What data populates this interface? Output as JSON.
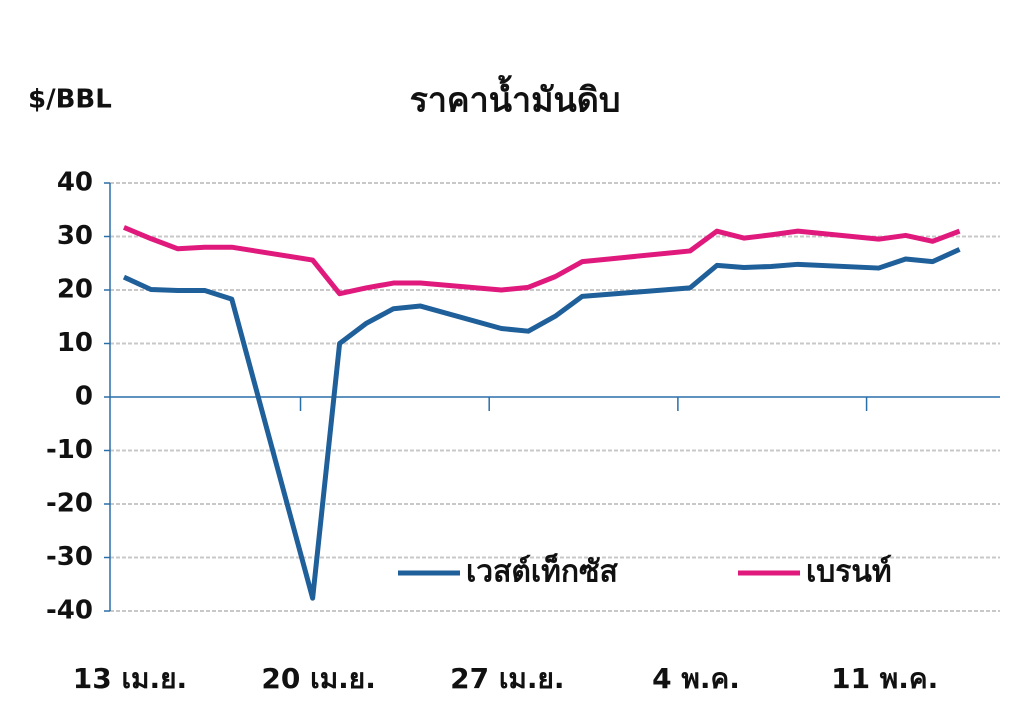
{
  "chart_data": {
    "type": "line",
    "title": "ราคาน้ำมันดิบ",
    "y_label": "$/BBL",
    "x": [
      0,
      1,
      2,
      3,
      4,
      7,
      8,
      9,
      10,
      11,
      14,
      15,
      16,
      17,
      18,
      21,
      22,
      23,
      24,
      25,
      28,
      29,
      30,
      31
    ],
    "series": [
      {
        "name": "เวสต์เท็กซัส",
        "color": "#1f5f9a",
        "values": [
          22.4,
          20.1,
          19.9,
          19.9,
          18.3,
          -37.6,
          10.0,
          13.8,
          16.5,
          17.0,
          12.8,
          12.3,
          15.1,
          18.8,
          19.2,
          20.4,
          24.6,
          24.2,
          24.4,
          24.8,
          24.1,
          25.8,
          25.3,
          27.6
        ]
      },
      {
        "name": "เบรนท์",
        "color": "#e0197d",
        "values": [
          31.7,
          29.6,
          27.7,
          28.0,
          28.0,
          25.6,
          19.3,
          20.4,
          21.3,
          21.3,
          20.0,
          20.5,
          22.5,
          25.3,
          25.8,
          27.3,
          31.0,
          29.7,
          30.3,
          31.0,
          29.5,
          30.2,
          29.1,
          31.0
        ]
      }
    ],
    "xlim": [
      -1,
      32.5
    ],
    "xticks": [
      {
        "value": 0,
        "label": "13 เม.ย."
      },
      {
        "value": 7,
        "label": "20 เม.ย."
      },
      {
        "value": 14,
        "label": "27 เม.ย."
      },
      {
        "value": 21,
        "label": "4 พ.ค."
      },
      {
        "value": 28,
        "label": "11 พ.ค."
      }
    ],
    "ylim": [
      -40,
      40
    ],
    "yticks": [
      -40,
      -30,
      -20,
      -10,
      0,
      10,
      20,
      30,
      40
    ],
    "grid": true,
    "legend": "bottom-right"
  }
}
